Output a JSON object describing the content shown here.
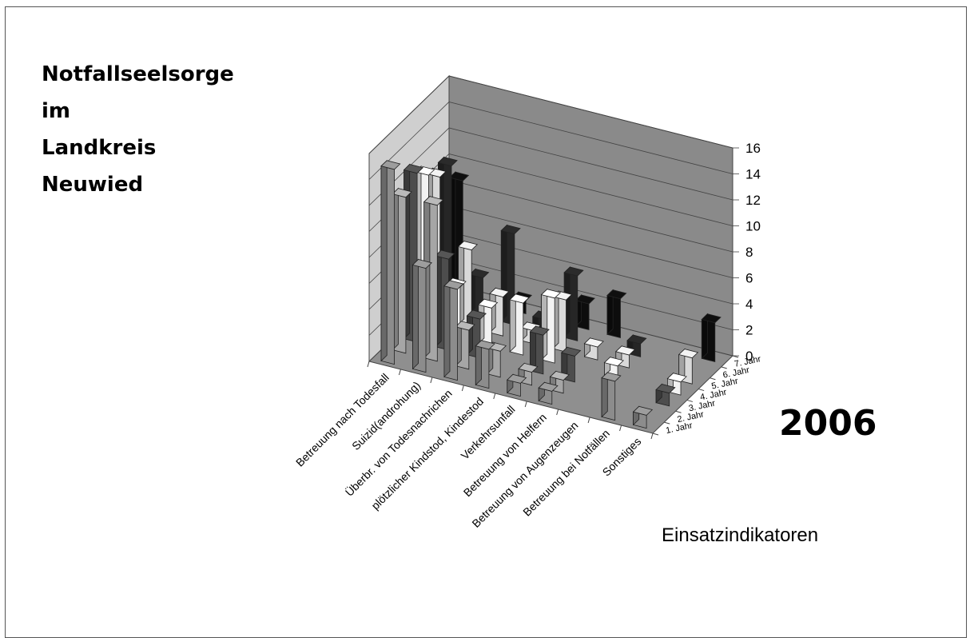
{
  "title_lines": [
    "Notfallseelsorge",
    "im",
    "Landkreis",
    "Neuwied"
  ],
  "year_label": "2006",
  "footer_label": "Einsatzindikatoren",
  "chart_data": {
    "type": "bar",
    "subtype": "3d-column",
    "categories": [
      "Betreuung nach Todesfall",
      "Suizid(androhung)",
      "Überbr. von Todesnachrichen",
      "plötzlicher Kindstod, Kindestod",
      "Verkehrsunfall",
      "Betreuung von Helfern",
      "Betreuung von Augenzeugen",
      "Betreuung bei Notfällen",
      "Sonstiges"
    ],
    "series": [
      {
        "name": "1. Jahr",
        "color": "#8c8c8c",
        "values": [
          15,
          8,
          7,
          3,
          1,
          1,
          0,
          3,
          1
        ]
      },
      {
        "name": "2. Jahr",
        "color": "#a6a6a6",
        "values": [
          12,
          12,
          3,
          2,
          1,
          1,
          0,
          0,
          0
        ]
      },
      {
        "name": "3. Jahr",
        "color": "#4d4d4d",
        "values": [
          13,
          7,
          3,
          0,
          3,
          2,
          0,
          0,
          1
        ]
      },
      {
        "name": "4. Jahr",
        "color": "#f2f2f2",
        "values": [
          12,
          4,
          3,
          4,
          5,
          0,
          1,
          0,
          1
        ]
      },
      {
        "name": "5. Jahr",
        "color": "#d9d9d9",
        "values": [
          11,
          6,
          3,
          1,
          4,
          1,
          1,
          0,
          2
        ]
      },
      {
        "name": "6. Jahr",
        "color": "#262626",
        "values": [
          11,
          3,
          7,
          1,
          5,
          0,
          1,
          0,
          0
        ]
      },
      {
        "name": "7. Jahr",
        "color": "#0d0d0d",
        "values": [
          9,
          0,
          1,
          0,
          2,
          3,
          0,
          0,
          3
        ]
      }
    ],
    "xlabel": "",
    "ylabel": "",
    "ylim": [
      0,
      16
    ],
    "yticks": [
      0,
      2,
      4,
      6,
      8,
      10,
      12,
      14,
      16
    ],
    "grid": true,
    "legend": "none"
  }
}
